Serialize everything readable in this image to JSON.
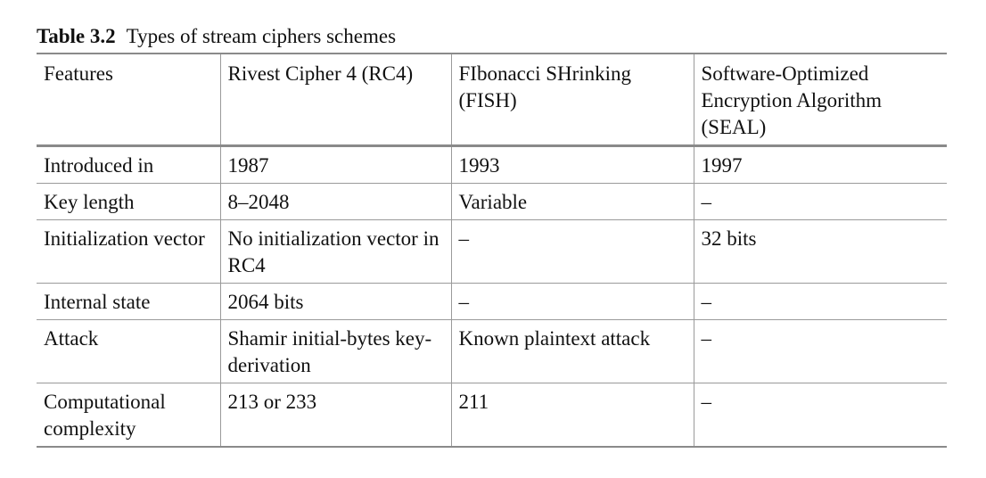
{
  "caption": {
    "label": "Table 3.2",
    "title": "Types of stream ciphers schemes"
  },
  "table": {
    "headers": [
      "Features",
      "Rivest Cipher 4 (RC4)",
      "FIbonacci SHrinking (FISH)",
      "Software-Optimized Encryption Algorithm (SEAL)"
    ],
    "rows": [
      [
        "Introduced in",
        "1987",
        "1993",
        "1997"
      ],
      [
        "Key length",
        "8–2048",
        "Variable",
        "–"
      ],
      [
        "Initialization vector",
        "No initialization vector in RC4",
        "–",
        "32 bits"
      ],
      [
        "Internal state",
        "2064 bits",
        "–",
        "–"
      ],
      [
        "Attack",
        "Shamir initial-bytes key-derivation",
        "Known plaintext attack",
        "–"
      ],
      [
        "Computational complexity",
        "213 or 233",
        "211",
        "–"
      ]
    ]
  }
}
